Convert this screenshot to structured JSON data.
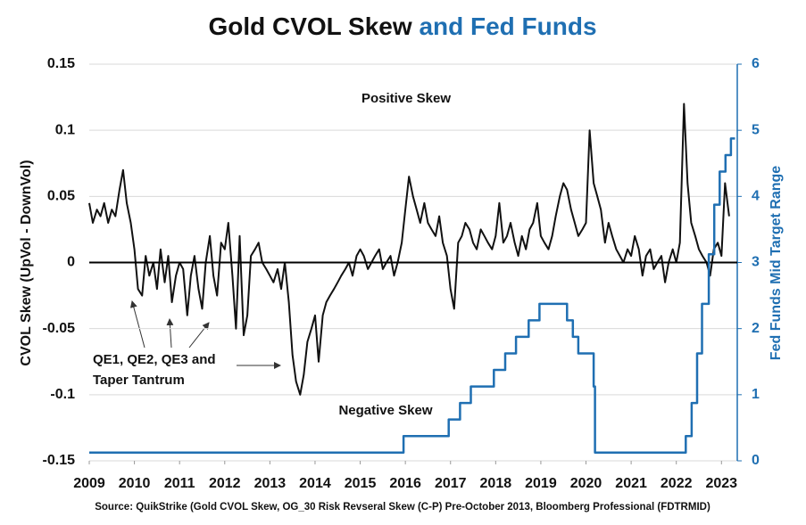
{
  "chart_data": {
    "type": "line",
    "title": "Gold CVOL Skew",
    "title_highlight": "and Fed Funds",
    "y_label": "CVOL Skew (UpVol - DownVol)",
    "y2_label": "Fed Funds Mid Target Range",
    "annotations": [
      "Positive Skew",
      "Negative Skew",
      "QE1, QE2, QE3 and",
      "Taper Tantrum"
    ],
    "source": "Source: QuikStrike (Gold CVOL Skew, OG_30 Risk Revseral Skew (C-P) Pre-October 2013, Bloomberg Professional  (FDTRMID)",
    "xlim": [
      2009,
      2023.35
    ],
    "xticks": [
      2009,
      2010,
      2011,
      2012,
      2013,
      2014,
      2015,
      2016,
      2017,
      2018,
      2019,
      2020,
      2021,
      2022,
      2023
    ],
    "ylim": [
      -0.15,
      0.15
    ],
    "yticks": [
      0.15,
      0.1,
      0.05,
      0,
      -0.05,
      -0.1,
      -0.15
    ],
    "y2lim": [
      0,
      6
    ],
    "y2ticks": [
      0,
      1,
      2,
      3,
      4,
      5,
      6
    ],
    "grid": true,
    "series": [
      {
        "name": "Gold CVOL Skew",
        "color": "#111111",
        "x": [
          2009,
          2009.08,
          2009.17,
          2009.25,
          2009.33,
          2009.42,
          2009.5,
          2009.58,
          2009.67,
          2009.75,
          2009.83,
          2009.92,
          2010,
          2010.08,
          2010.17,
          2010.25,
          2010.33,
          2010.42,
          2010.5,
          2010.58,
          2010.67,
          2010.75,
          2010.83,
          2010.92,
          2011,
          2011.08,
          2011.17,
          2011.25,
          2011.33,
          2011.42,
          2011.5,
          2011.58,
          2011.67,
          2011.75,
          2011.83,
          2011.92,
          2012,
          2012.08,
          2012.17,
          2012.25,
          2012.33,
          2012.42,
          2012.5,
          2012.58,
          2012.67,
          2012.75,
          2012.83,
          2012.92,
          2013,
          2013.08,
          2013.17,
          2013.25,
          2013.33,
          2013.42,
          2013.5,
          2013.58,
          2013.67,
          2013.75,
          2013.83,
          2013.92,
          2014,
          2014.08,
          2014.17,
          2014.25,
          2014.33,
          2014.42,
          2014.5,
          2014.58,
          2014.67,
          2014.75,
          2014.83,
          2014.92,
          2015,
          2015.08,
          2015.17,
          2015.25,
          2015.33,
          2015.42,
          2015.5,
          2015.58,
          2015.67,
          2015.75,
          2015.83,
          2015.92,
          2016,
          2016.08,
          2016.17,
          2016.25,
          2016.33,
          2016.42,
          2016.5,
          2016.58,
          2016.67,
          2016.75,
          2016.83,
          2016.92,
          2017,
          2017.08,
          2017.17,
          2017.25,
          2017.33,
          2017.42,
          2017.5,
          2017.58,
          2017.67,
          2017.75,
          2017.83,
          2017.92,
          2018,
          2018.08,
          2018.17,
          2018.25,
          2018.33,
          2018.42,
          2018.5,
          2018.58,
          2018.67,
          2018.75,
          2018.83,
          2018.92,
          2019,
          2019.08,
          2019.17,
          2019.25,
          2019.33,
          2019.42,
          2019.5,
          2019.58,
          2019.67,
          2019.75,
          2019.83,
          2019.92,
          2020,
          2020.08,
          2020.17,
          2020.25,
          2020.33,
          2020.42,
          2020.5,
          2020.58,
          2020.67,
          2020.75,
          2020.83,
          2020.92,
          2021,
          2021.08,
          2021.17,
          2021.25,
          2021.33,
          2021.42,
          2021.5,
          2021.58,
          2021.67,
          2021.75,
          2021.83,
          2021.92,
          2022,
          2022.08,
          2022.17,
          2022.25,
          2022.33,
          2022.42,
          2022.5,
          2022.58,
          2022.67,
          2022.75,
          2022.83,
          2022.92,
          2023,
          2023.08,
          2023.17
        ],
        "values": [
          0.045,
          0.03,
          0.04,
          0.035,
          0.045,
          0.03,
          0.04,
          0.035,
          0.055,
          0.07,
          0.045,
          0.03,
          0.01,
          -0.02,
          -0.025,
          0.005,
          -0.01,
          0.0,
          -0.02,
          0.01,
          -0.015,
          0.005,
          -0.03,
          -0.01,
          0.0,
          -0.005,
          -0.04,
          -0.01,
          0.005,
          -0.02,
          -0.035,
          0.0,
          0.02,
          -0.01,
          -0.025,
          0.015,
          0.01,
          0.03,
          -0.01,
          -0.05,
          0.02,
          -0.055,
          -0.04,
          0.005,
          0.01,
          0.015,
          0.0,
          -0.005,
          -0.01,
          -0.015,
          -0.005,
          -0.02,
          0.0,
          -0.03,
          -0.07,
          -0.09,
          -0.1,
          -0.085,
          -0.06,
          -0.05,
          -0.04,
          -0.075,
          -0.04,
          -0.03,
          -0.025,
          -0.02,
          -0.015,
          -0.01,
          -0.005,
          0.0,
          -0.01,
          0.005,
          0.01,
          0.005,
          -0.005,
          0.0,
          0.005,
          0.01,
          -0.005,
          0.0,
          0.005,
          -0.01,
          0.0,
          0.015,
          0.04,
          0.065,
          0.05,
          0.04,
          0.03,
          0.045,
          0.03,
          0.025,
          0.02,
          0.035,
          0.015,
          0.005,
          -0.02,
          -0.035,
          0.015,
          0.02,
          0.03,
          0.025,
          0.015,
          0.01,
          0.025,
          0.02,
          0.015,
          0.01,
          0.02,
          0.045,
          0.015,
          0.02,
          0.03,
          0.015,
          0.005,
          0.02,
          0.01,
          0.025,
          0.03,
          0.045,
          0.02,
          0.015,
          0.01,
          0.02,
          0.035,
          0.05,
          0.06,
          0.055,
          0.04,
          0.03,
          0.02,
          0.025,
          0.03,
          0.1,
          0.06,
          0.05,
          0.04,
          0.015,
          0.03,
          0.02,
          0.01,
          0.005,
          0.0,
          0.01,
          0.005,
          0.02,
          0.01,
          -0.01,
          0.005,
          0.01,
          -0.005,
          0.0,
          0.005,
          -0.015,
          0.0,
          0.01,
          0.0,
          0.015,
          0.12,
          0.06,
          0.03,
          0.02,
          0.01,
          0.005,
          0.0,
          -0.01,
          0.01,
          0.015,
          0.005,
          0.06,
          0.035
        ]
      },
      {
        "name": "Fed Funds",
        "color": "#1f6fb2",
        "axis": "y2",
        "x": [
          2009,
          2015.96,
          2015.96,
          2016.96,
          2016.96,
          2017.21,
          2017.21,
          2017.45,
          2017.45,
          2017.96,
          2017.96,
          2018.21,
          2018.21,
          2018.45,
          2018.45,
          2018.73,
          2018.73,
          2018.97,
          2018.97,
          2019.58,
          2019.58,
          2019.71,
          2019.71,
          2019.83,
          2019.83,
          2020.17,
          2020.17,
          2020.2,
          2020.2,
          2022.21,
          2022.21,
          2022.34,
          2022.34,
          2022.46,
          2022.46,
          2022.57,
          2022.57,
          2022.72,
          2022.72,
          2022.84,
          2022.84,
          2022.96,
          2022.96,
          2023.09,
          2023.09,
          2023.21,
          2023.21,
          2023.3
        ],
        "values": [
          0.125,
          0.125,
          0.375,
          0.375,
          0.625,
          0.625,
          0.875,
          0.875,
          1.125,
          1.125,
          1.375,
          1.375,
          1.625,
          1.625,
          1.875,
          1.875,
          2.125,
          2.125,
          2.375,
          2.375,
          2.125,
          2.125,
          1.875,
          1.875,
          1.625,
          1.625,
          1.125,
          1.125,
          0.125,
          0.125,
          0.375,
          0.375,
          0.875,
          0.875,
          1.625,
          1.625,
          2.375,
          2.375,
          3.125,
          3.125,
          3.875,
          3.875,
          4.375,
          4.375,
          4.625,
          4.625,
          4.875,
          4.875
        ]
      }
    ]
  }
}
